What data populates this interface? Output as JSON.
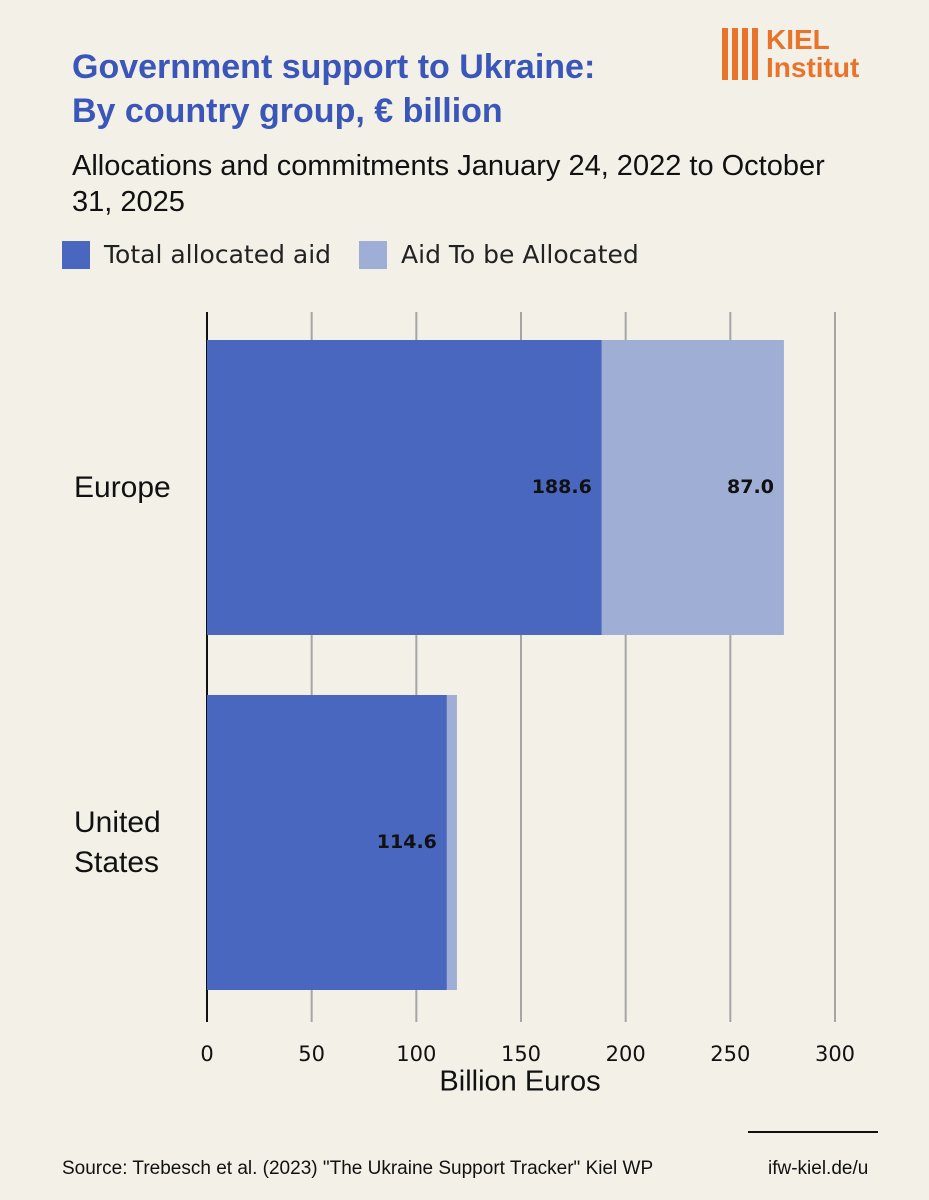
{
  "logo": {
    "line1": "KIEL",
    "line2": "Institut"
  },
  "chart_data": {
    "type": "stacked-bar-horizontal",
    "title": "Government support to Ukraine:",
    "title_line2": "By country group, € billion",
    "subtitle": "Allocations and commitments January 24, 2022 to October 31, 2025",
    "categories": [
      "Europe",
      "United States"
    ],
    "series": [
      {
        "name": "Total allocated aid",
        "color": "#4a67bf",
        "values": [
          188.6,
          114.6
        ]
      },
      {
        "name": "Aid To be Allocated",
        "color": "#9faed4",
        "values": [
          87.0,
          4.8
        ],
        "value_labels": [
          "87.0",
          null
        ]
      }
    ],
    "xlim": [
      0,
      300
    ],
    "xticks": [
      0,
      50,
      100,
      150,
      200,
      250,
      300
    ],
    "xlabel": "Billion Euros",
    "grid": true
  },
  "footer": {
    "source": "Source: Trebesch et al. (2023) \"The Ukraine Support Tracker\" Kiel WP",
    "url": "ifw-kiel.de/u"
  }
}
